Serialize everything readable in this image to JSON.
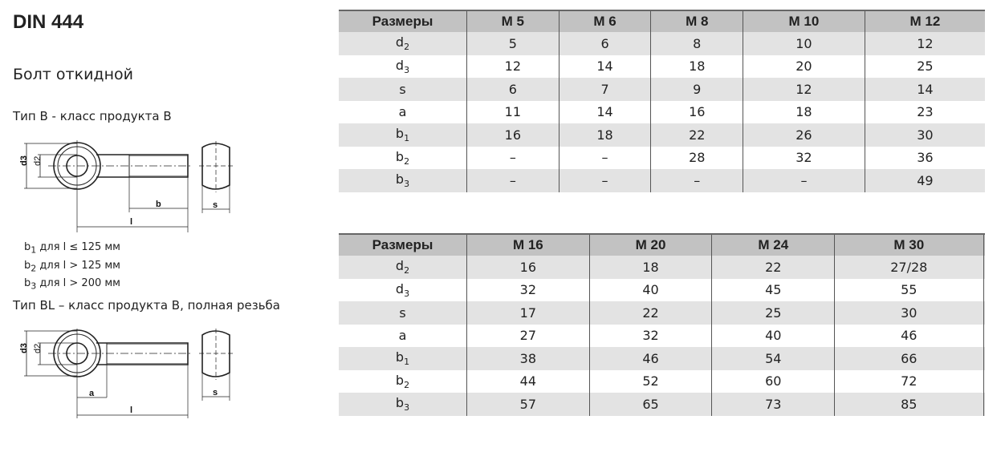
{
  "title": "DIN 444",
  "subtitle": "Болт откидной",
  "type_b": "Тип B  - класс продукта B",
  "type_bl": "Тип BL – класс продукта B, полная резьба",
  "notes": [
    {
      "sub": "1",
      "text": " для l ≤ 125 мм"
    },
    {
      "sub": "2",
      "text": " для l > 125 мм"
    },
    {
      "sub": "3",
      "text": " для l > 200 мм"
    }
  ],
  "drawing_labels": {
    "d3": "d3",
    "d2": "d2",
    "b": "b",
    "l": "l",
    "s": "s",
    "a": "a"
  },
  "colors": {
    "header_bg": "#c2c2c2",
    "row_alt_bg": "#e3e3e3"
  },
  "tables": [
    {
      "header": [
        "Размеры",
        "M 5",
        "M 6",
        "M 8",
        "M 10",
        "M 12"
      ],
      "rows": [
        {
          "base": "d",
          "sub": "2",
          "values": [
            "5",
            "6",
            "8",
            "10",
            "12"
          ]
        },
        {
          "base": "d",
          "sub": "3",
          "values": [
            "12",
            "14",
            "18",
            "20",
            "25"
          ]
        },
        {
          "base": "s",
          "sub": "",
          "values": [
            "6",
            "7",
            "9",
            "12",
            "14"
          ]
        },
        {
          "base": "a",
          "sub": "",
          "values": [
            "11",
            "14",
            "16",
            "18",
            "23"
          ]
        },
        {
          "base": "b",
          "sub": "1",
          "values": [
            "16",
            "18",
            "22",
            "26",
            "30"
          ]
        },
        {
          "base": "b",
          "sub": "2",
          "values": [
            "–",
            "–",
            "28",
            "32",
            "36"
          ]
        },
        {
          "base": "b",
          "sub": "3",
          "values": [
            "–",
            "–",
            "–",
            "–",
            "49"
          ]
        }
      ]
    },
    {
      "header": [
        "Размеры",
        "M 16",
        "M 20",
        "M 24",
        "M 30",
        ""
      ],
      "rows": [
        {
          "base": "d",
          "sub": "2",
          "values": [
            "16",
            "18",
            "22",
            "27/28",
            ""
          ]
        },
        {
          "base": "d",
          "sub": "3",
          "values": [
            "32",
            "40",
            "45",
            "55",
            ""
          ]
        },
        {
          "base": "s",
          "sub": "",
          "values": [
            "17",
            "22",
            "25",
            "30",
            ""
          ]
        },
        {
          "base": "a",
          "sub": "",
          "values": [
            "27",
            "32",
            "40",
            "46",
            ""
          ]
        },
        {
          "base": "b",
          "sub": "1",
          "values": [
            "38",
            "46",
            "54",
            "66",
            ""
          ]
        },
        {
          "base": "b",
          "sub": "2",
          "values": [
            "44",
            "52",
            "60",
            "72",
            ""
          ]
        },
        {
          "base": "b",
          "sub": "3",
          "values": [
            "57",
            "65",
            "73",
            "85",
            ""
          ]
        }
      ]
    }
  ]
}
